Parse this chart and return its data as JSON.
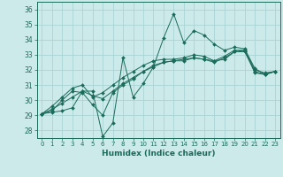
{
  "xlabel": "Humidex (Indice chaleur)",
  "background_color": "#cceaea",
  "grid_color": "#aad4d4",
  "line_color": "#1a6b5a",
  "ylim": [
    27.5,
    36.5
  ],
  "xlim": [
    -0.5,
    23.5
  ],
  "yticks": [
    28,
    29,
    30,
    31,
    32,
    33,
    34,
    35,
    36
  ],
  "xticks": [
    0,
    1,
    2,
    3,
    4,
    5,
    6,
    7,
    8,
    9,
    10,
    11,
    12,
    13,
    14,
    15,
    16,
    17,
    18,
    19,
    20,
    21,
    22,
    23
  ],
  "series": [
    [
      29.1,
      29.2,
      29.3,
      29.5,
      30.6,
      30.6,
      27.6,
      28.5,
      32.8,
      30.2,
      31.1,
      32.2,
      34.1,
      35.7,
      33.8,
      34.6,
      34.3,
      33.7,
      33.3,
      33.5,
      33.4,
      32.1,
      31.7,
      31.9
    ],
    [
      29.1,
      29.3,
      30.0,
      30.6,
      30.5,
      29.7,
      29.0,
      30.5,
      31.0,
      31.4,
      31.9,
      32.3,
      32.5,
      32.6,
      32.6,
      32.8,
      32.7,
      32.5,
      32.8,
      33.2,
      33.3,
      31.8,
      31.7,
      31.9
    ],
    [
      29.1,
      29.4,
      29.8,
      30.2,
      30.6,
      30.3,
      30.1,
      30.6,
      31.1,
      31.5,
      31.9,
      32.2,
      32.5,
      32.6,
      32.7,
      32.8,
      32.7,
      32.6,
      32.7,
      33.2,
      33.2,
      31.9,
      31.7,
      31.9
    ],
    [
      29.1,
      29.6,
      30.2,
      30.8,
      31.0,
      30.2,
      30.5,
      31.0,
      31.5,
      31.9,
      32.3,
      32.6,
      32.7,
      32.7,
      32.8,
      33.0,
      32.9,
      32.6,
      32.9,
      33.3,
      33.3,
      32.0,
      31.8,
      31.9
    ]
  ]
}
